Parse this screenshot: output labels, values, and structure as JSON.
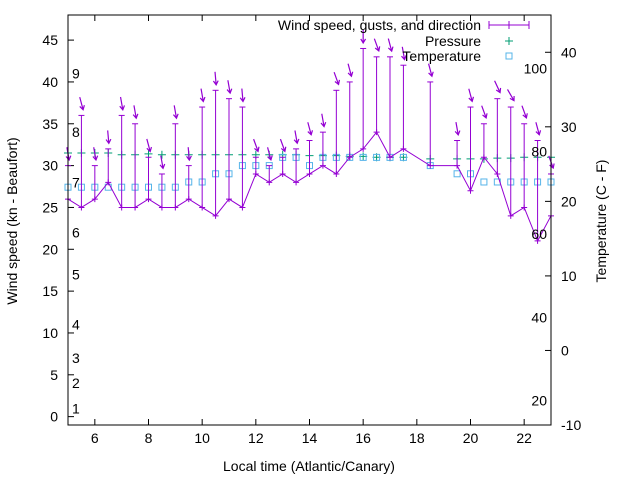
{
  "chart_data": {
    "type": "line",
    "xlabel": "Local time (Atlantic/Canary)",
    "ylabel_left": "Wind speed (kn - Beaufort)",
    "ylabel_right": "Temperature (C - F)",
    "xlim": [
      5,
      23
    ],
    "ylim_left": [
      -1,
      48
    ],
    "ylim_right": [
      -10,
      45
    ],
    "x_ticks": [
      "6",
      "8",
      "10",
      "12",
      "14",
      "16",
      "18",
      "20",
      "22"
    ],
    "y_left_ticks": [
      "0",
      "5",
      "10",
      "15",
      "20",
      "25",
      "30",
      "35",
      "40",
      "45"
    ],
    "y_right_c_ticks": [
      "-10",
      "0",
      "10",
      "20",
      "30",
      "40"
    ],
    "y_right_f_ticks": [
      {
        "label": "20",
        "c": -6.7
      },
      {
        "label": "40",
        "c": 4.4
      },
      {
        "label": "60",
        "c": 15.6
      },
      {
        "label": "80",
        "c": 26.7
      },
      {
        "label": "100",
        "c": 37.8
      }
    ],
    "beaufort_labels": [
      {
        "label": "1",
        "kn": 1
      },
      {
        "label": "2",
        "kn": 4
      },
      {
        "label": "3",
        "kn": 7
      },
      {
        "label": "4",
        "kn": 11
      },
      {
        "label": "5",
        "kn": 17
      },
      {
        "label": "6",
        "kn": 22
      },
      {
        "label": "7",
        "kn": 28
      },
      {
        "label": "8",
        "kn": 34
      },
      {
        "label": "9",
        "kn": 41
      }
    ],
    "legend": [
      {
        "name": "Wind speed, gusts, and direction",
        "color": "#9400d3"
      },
      {
        "name": "Pressure",
        "color": "#009e73"
      },
      {
        "name": "Temperature",
        "color": "#56b4e9"
      }
    ],
    "wind": {
      "x": [
        5,
        5.5,
        6,
        6.5,
        7,
        7.5,
        8,
        8.5,
        9,
        9.5,
        10,
        10.5,
        11,
        11.5,
        12,
        12.5,
        13,
        13.5,
        14,
        14.5,
        15,
        15.5,
        16,
        16.5,
        17,
        17.5,
        18.5,
        19.5,
        20,
        20.5,
        21,
        21.5,
        22,
        22.5,
        23
      ],
      "speed": [
        26,
        25,
        26,
        28,
        25,
        25,
        26,
        25,
        25,
        26,
        25,
        24,
        26,
        25,
        29,
        28,
        29,
        28,
        29,
        30,
        29,
        31,
        32,
        34,
        31,
        32,
        30,
        30,
        27,
        31,
        29,
        24,
        25,
        21,
        24
      ],
      "gust": [
        30,
        36,
        30,
        32,
        36,
        35,
        31,
        29,
        35,
        30,
        37,
        39,
        38,
        37,
        31,
        30,
        31,
        32,
        33,
        34,
        39,
        40,
        44,
        43,
        43,
        42,
        40,
        33,
        37,
        35,
        38,
        37,
        35,
        33,
        29
      ],
      "direction_deg": [
        350,
        345,
        350,
        355,
        350,
        350,
        345,
        350,
        350,
        355,
        350,
        355,
        350,
        355,
        340,
        345,
        340,
        350,
        345,
        350,
        340,
        345,
        0,
        340,
        345,
        350,
        345,
        350,
        345,
        340,
        335,
        330,
        340,
        345,
        340
      ]
    },
    "pressure": {
      "x": [
        5,
        5.5,
        6,
        6.5,
        7,
        7.5,
        8,
        8.5,
        9,
        9.5,
        10,
        10.5,
        11,
        11.5,
        12,
        12.5,
        13,
        13.5,
        14,
        14.5,
        15,
        15.5,
        16,
        16.5,
        17,
        17.5,
        18.5,
        19.5,
        20,
        20.5,
        21,
        21.5,
        22,
        22.5,
        23
      ],
      "y_kn_scale": [
        31.5,
        31.5,
        31.5,
        31.5,
        31.3,
        31.3,
        31.4,
        31.3,
        31.3,
        31.3,
        31.3,
        31.3,
        31.3,
        31.3,
        31.3,
        31.3,
        31.3,
        31.3,
        31.2,
        31.2,
        31.2,
        31.1,
        31.1,
        31,
        31,
        31,
        30.8,
        30.8,
        30.8,
        30.8,
        30.9,
        30.9,
        31,
        31,
        31
      ]
    },
    "temperature": {
      "x": [
        5,
        5.5,
        6,
        6.5,
        7,
        7.5,
        8,
        8.5,
        9,
        9.5,
        10,
        10.5,
        11,
        11.5,
        12,
        12.5,
        13,
        13.5,
        14,
        14.5,
        15,
        15.5,
        16,
        16.5,
        17,
        17.5,
        18.5,
        19.5,
        20,
        20.5,
        21,
        21.5,
        22,
        22.5,
        23
      ],
      "c": [
        21.9,
        21.9,
        21.9,
        21.9,
        21.9,
        21.9,
        21.9,
        21.9,
        21.9,
        22.6,
        22.6,
        23.7,
        23.7,
        24.8,
        24.8,
        24.8,
        25.9,
        25.9,
        24.8,
        25.9,
        25.9,
        25.9,
        25.9,
        25.9,
        25.9,
        25.9,
        24.8,
        23.7,
        23.7,
        22.6,
        22.6,
        22.6,
        22.6,
        22.6,
        22.6
      ]
    }
  }
}
